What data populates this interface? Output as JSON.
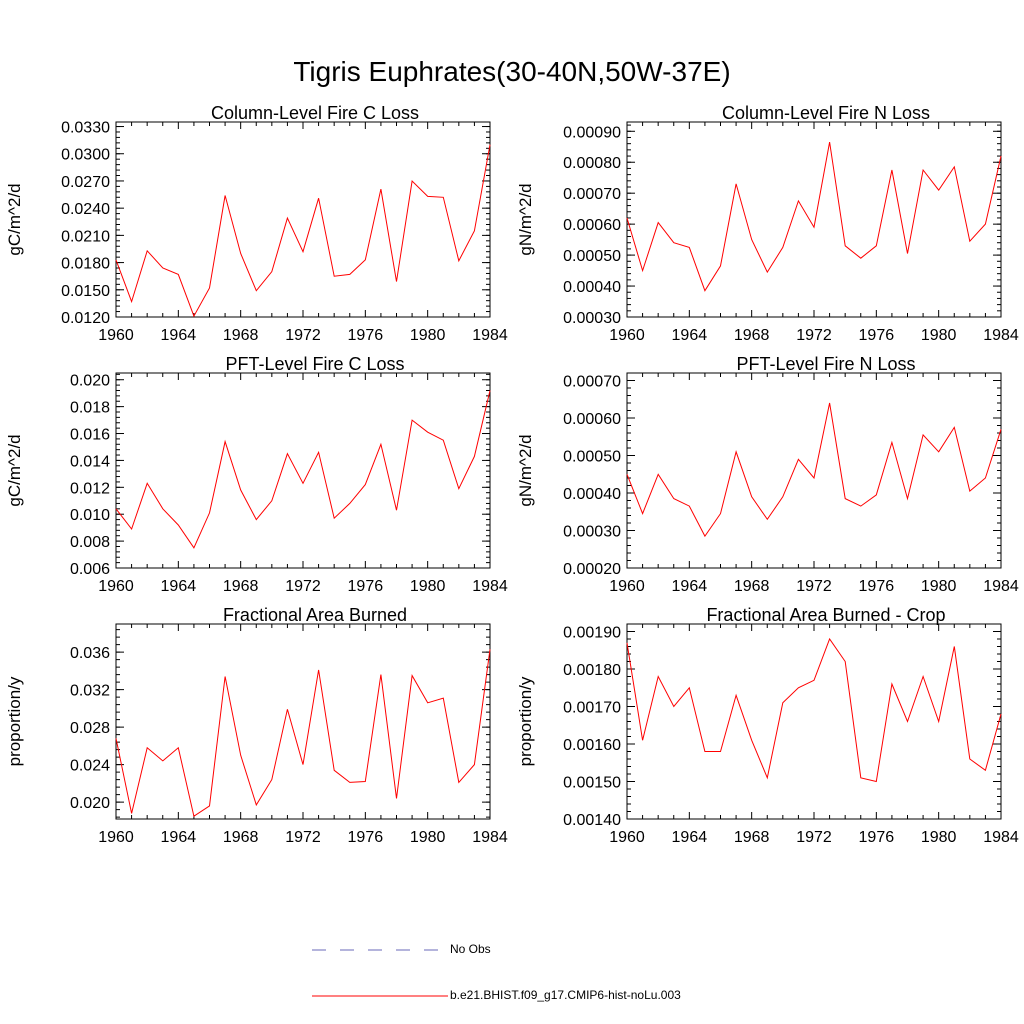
{
  "title": "Tigris Euphrates(30-40N,50W-37E)",
  "legend": {
    "items": [
      {
        "label": "No Obs",
        "color": "#6a6ab8",
        "style": "dashed"
      },
      {
        "label": "b.e21.BHIST.f09_g17.CMIP6-hist-noLu.003",
        "color": "#ff0000",
        "style": "solid"
      }
    ]
  },
  "chart_data": [
    {
      "type": "line",
      "title": "Column-Level Fire C Loss",
      "ylabel": "gC/m^2/d",
      "xlim": [
        1960,
        1984
      ],
      "ylim": [
        0.012,
        0.0335
      ],
      "yticks": [
        "0.0120",
        "0.0150",
        "0.0180",
        "0.0210",
        "0.0240",
        "0.0270",
        "0.0300",
        "0.0330"
      ],
      "ytick_values": [
        0.012,
        0.015,
        0.018,
        0.021,
        0.024,
        0.027,
        0.03,
        0.033
      ],
      "xticks": [
        "1960",
        "1964",
        "1968",
        "1972",
        "1976",
        "1980",
        "1984"
      ],
      "series": [
        {
          "name": "b.e21.BHIST.f09_g17.CMIP6-hist-noLu.003",
          "color": "#ff0000",
          "x": [
            1960,
            1961,
            1962,
            1963,
            1964,
            1965,
            1966,
            1967,
            1968,
            1969,
            1970,
            1971,
            1972,
            1973,
            1974,
            1975,
            1976,
            1977,
            1978,
            1979,
            1980,
            1981,
            1982,
            1983,
            1984
          ],
          "y": [
            0.0183,
            0.0137,
            0.0193,
            0.0174,
            0.0167,
            0.0121,
            0.0152,
            0.0254,
            0.019,
            0.0149,
            0.017,
            0.0229,
            0.0192,
            0.0251,
            0.0165,
            0.0167,
            0.0183,
            0.0261,
            0.0159,
            0.027,
            0.0253,
            0.0252,
            0.0182,
            0.0215,
            0.031
          ]
        }
      ]
    },
    {
      "type": "line",
      "title": "Column-Level Fire N Loss",
      "ylabel": "gN/m^2/d",
      "xlim": [
        1960,
        1984
      ],
      "ylim": [
        0.0003,
        0.00093
      ],
      "yticks": [
        "0.00030",
        "0.00040",
        "0.00050",
        "0.00060",
        "0.00070",
        "0.00080",
        "0.00090"
      ],
      "ytick_values": [
        0.0003,
        0.0004,
        0.0005,
        0.0006,
        0.0007,
        0.0008,
        0.0009
      ],
      "xticks": [
        "1960",
        "1964",
        "1968",
        "1972",
        "1976",
        "1980",
        "1984"
      ],
      "series": [
        {
          "name": "b.e21.BHIST.f09_g17.CMIP6-hist-noLu.003",
          "color": "#ff0000",
          "x": [
            1960,
            1961,
            1962,
            1963,
            1964,
            1965,
            1966,
            1967,
            1968,
            1969,
            1970,
            1971,
            1972,
            1973,
            1974,
            1975,
            1976,
            1977,
            1978,
            1979,
            1980,
            1981,
            1982,
            1983,
            1984
          ],
          "y": [
            0.00062,
            0.00045,
            0.000605,
            0.00054,
            0.000525,
            0.000385,
            0.000465,
            0.00073,
            0.00055,
            0.000445,
            0.000525,
            0.000675,
            0.00059,
            0.000865,
            0.00053,
            0.00049,
            0.00053,
            0.000775,
            0.000505,
            0.000775,
            0.00071,
            0.000785,
            0.000545,
            0.0006,
            0.00082
          ]
        }
      ]
    },
    {
      "type": "line",
      "title": "PFT-Level Fire C Loss",
      "ylabel": "gC/m^2/d",
      "xlim": [
        1960,
        1984
      ],
      "ylim": [
        0.006,
        0.0205
      ],
      "yticks": [
        "0.006",
        "0.008",
        "0.010",
        "0.012",
        "0.014",
        "0.016",
        "0.018",
        "0.020"
      ],
      "ytick_values": [
        0.006,
        0.008,
        0.01,
        0.012,
        0.014,
        0.016,
        0.018,
        0.02
      ],
      "xticks": [
        "1960",
        "1964",
        "1968",
        "1972",
        "1976",
        "1980",
        "1984"
      ],
      "series": [
        {
          "name": "b.e21.BHIST.f09_g17.CMIP6-hist-noLu.003",
          "color": "#ff0000",
          "x": [
            1960,
            1961,
            1962,
            1963,
            1964,
            1965,
            1966,
            1967,
            1968,
            1969,
            1970,
            1971,
            1972,
            1973,
            1974,
            1975,
            1976,
            1977,
            1978,
            1979,
            1980,
            1981,
            1982,
            1983,
            1984
          ],
          "y": [
            0.0104,
            0.0089,
            0.0123,
            0.0104,
            0.0092,
            0.0075,
            0.0101,
            0.0154,
            0.0118,
            0.0096,
            0.011,
            0.0145,
            0.0123,
            0.0146,
            0.0097,
            0.0108,
            0.0122,
            0.0152,
            0.0103,
            0.017,
            0.0161,
            0.0155,
            0.0119,
            0.0143,
            0.0192
          ]
        }
      ]
    },
    {
      "type": "line",
      "title": "PFT-Level Fire N Loss",
      "ylabel": "gN/m^2/d",
      "xlim": [
        1960,
        1984
      ],
      "ylim": [
        0.0002,
        0.00072
      ],
      "yticks": [
        "0.00020",
        "0.00030",
        "0.00040",
        "0.00050",
        "0.00060",
        "0.00070"
      ],
      "ytick_values": [
        0.0002,
        0.0003,
        0.0004,
        0.0005,
        0.0006,
        0.0007
      ],
      "xticks": [
        "1960",
        "1964",
        "1968",
        "1972",
        "1976",
        "1980",
        "1984"
      ],
      "series": [
        {
          "name": "b.e21.BHIST.f09_g17.CMIP6-hist-noLu.003",
          "color": "#ff0000",
          "x": [
            1960,
            1961,
            1962,
            1963,
            1964,
            1965,
            1966,
            1967,
            1968,
            1969,
            1970,
            1971,
            1972,
            1973,
            1974,
            1975,
            1976,
            1977,
            1978,
            1979,
            1980,
            1981,
            1982,
            1983,
            1984
          ],
          "y": [
            0.00045,
            0.000345,
            0.00045,
            0.000385,
            0.000365,
            0.000285,
            0.000345,
            0.00051,
            0.00039,
            0.00033,
            0.00039,
            0.00049,
            0.00044,
            0.00064,
            0.000385,
            0.000365,
            0.000395,
            0.000535,
            0.000385,
            0.000555,
            0.00051,
            0.000575,
            0.000405,
            0.00044,
            0.00057
          ]
        }
      ]
    },
    {
      "type": "line",
      "title": "Fractional Area Burned",
      "ylabel": "proportion/y",
      "xlim": [
        1960,
        1984
      ],
      "ylim": [
        0.0182,
        0.039
      ],
      "yticks": [
        "0.020",
        "0.024",
        "0.028",
        "0.032",
        "0.036"
      ],
      "ytick_values": [
        0.02,
        0.024,
        0.028,
        0.032,
        0.036
      ],
      "xticks": [
        "1960",
        "1964",
        "1968",
        "1972",
        "1976",
        "1980",
        "1984"
      ],
      "series": [
        {
          "name": "b.e21.BHIST.f09_g17.CMIP6-hist-noLu.003",
          "color": "#ff0000",
          "x": [
            1960,
            1961,
            1962,
            1963,
            1964,
            1965,
            1966,
            1967,
            1968,
            1969,
            1970,
            1971,
            1972,
            1973,
            1974,
            1975,
            1976,
            1977,
            1978,
            1979,
            1980,
            1981,
            1982,
            1983,
            1984
          ],
          "y": [
            0.0268,
            0.0188,
            0.0258,
            0.0244,
            0.0258,
            0.0185,
            0.0196,
            0.0334,
            0.025,
            0.0197,
            0.0224,
            0.0299,
            0.024,
            0.0341,
            0.0234,
            0.0221,
            0.0222,
            0.0336,
            0.0204,
            0.0335,
            0.0306,
            0.0311,
            0.0221,
            0.024,
            0.0363
          ]
        }
      ]
    },
    {
      "type": "line",
      "title": "Fractional Area Burned - Crop",
      "ylabel": "proportion/y",
      "xlim": [
        1960,
        1984
      ],
      "ylim": [
        0.0014,
        0.00192
      ],
      "yticks": [
        "0.00140",
        "0.00150",
        "0.00160",
        "0.00170",
        "0.00180",
        "0.00190"
      ],
      "ytick_values": [
        0.0014,
        0.0015,
        0.0016,
        0.0017,
        0.0018,
        0.0019
      ],
      "xticks": [
        "1960",
        "1964",
        "1968",
        "1972",
        "1976",
        "1980",
        "1984"
      ],
      "series": [
        {
          "name": "b.e21.BHIST.f09_g17.CMIP6-hist-noLu.003",
          "color": "#ff0000",
          "x": [
            1960,
            1961,
            1962,
            1963,
            1964,
            1965,
            1966,
            1967,
            1968,
            1969,
            1970,
            1971,
            1972,
            1973,
            1974,
            1975,
            1976,
            1977,
            1978,
            1979,
            1980,
            1981,
            1982,
            1983,
            1984
          ],
          "y": [
            0.00187,
            0.00161,
            0.00178,
            0.0017,
            0.00175,
            0.00158,
            0.00158,
            0.00173,
            0.00161,
            0.00151,
            0.00171,
            0.00175,
            0.00177,
            0.00188,
            0.00182,
            0.00151,
            0.0015,
            0.00176,
            0.00166,
            0.00178,
            0.00166,
            0.00186,
            0.00156,
            0.00153,
            0.00168
          ]
        }
      ]
    }
  ]
}
